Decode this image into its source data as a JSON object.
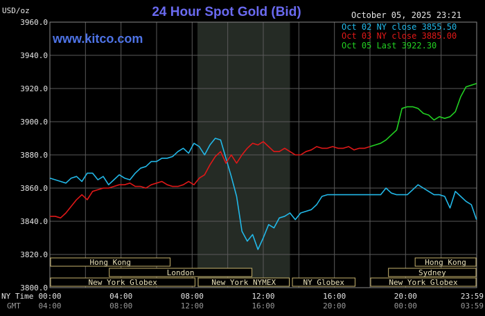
{
  "chart_data": {
    "type": "line",
    "title": "24 Hour Spot Gold (Bid)",
    "ylabel": "USD/oz",
    "watermark": "www.kitco.com",
    "timestamp": "October 05, 2025 23:21",
    "ylim": [
      3800,
      3960
    ],
    "yticks": [
      "3960.0",
      "3940.0",
      "3920.0",
      "3900.0",
      "3880.0",
      "3860.0",
      "3840.0",
      "3820.0",
      "3800.0"
    ],
    "ytick_values": [
      3960,
      3940,
      3920,
      3900,
      3880,
      3860,
      3840,
      3820,
      3800
    ],
    "xlim": [
      0,
      24
    ],
    "x_ny_label": "NY Time",
    "x_gmt_label": "GMT",
    "x_ny_ticks": [
      "00:00",
      "04:00",
      "08:00",
      "12:00",
      "16:00",
      "20:00",
      "23:59"
    ],
    "x_gmt_ticks": [
      "04:00",
      "08:00",
      "12:00",
      "16:00",
      "20:00",
      "00:00",
      "03:59"
    ],
    "x_tick_hours": [
      0,
      4,
      8,
      12,
      16,
      20,
      24
    ],
    "shaded_region": [
      8.3,
      13.5
    ],
    "grid": true,
    "legend_position": "top-right",
    "series": [
      {
        "name": "Oct 02 NY close 3855.50",
        "color": "#22b8e8",
        "x": [
          0,
          0.3,
          0.6,
          0.9,
          1.2,
          1.5,
          1.8,
          2.1,
          2.4,
          2.7,
          3.0,
          3.3,
          3.6,
          3.9,
          4.2,
          4.5,
          4.8,
          5.1,
          5.4,
          5.7,
          6.0,
          6.3,
          6.6,
          6.9,
          7.2,
          7.5,
          7.8,
          8.1,
          8.4,
          8.7,
          9.0,
          9.3,
          9.6,
          9.9,
          10.2,
          10.5,
          10.8,
          11.1,
          11.4,
          11.7,
          12.0,
          12.3,
          12.6,
          12.9,
          13.2,
          13.5,
          13.8,
          14.1,
          14.4,
          14.7,
          15.0,
          15.3,
          15.6,
          15.9,
          16.2,
          16.5,
          16.8,
          17.1,
          17.4,
          17.7,
          18.0,
          18.3,
          18.6,
          18.9,
          19.2,
          19.5,
          19.8,
          20.1,
          20.4,
          20.7,
          21.0,
          21.3,
          21.6,
          21.9,
          22.2,
          22.5,
          22.8,
          23.1,
          23.4,
          23.7,
          23.99
        ],
        "values": [
          3866,
          3865,
          3864,
          3863,
          3866,
          3867,
          3864,
          3869,
          3869,
          3865,
          3867,
          3862,
          3865,
          3868,
          3866,
          3865,
          3869,
          3872,
          3873,
          3876,
          3876,
          3878,
          3878,
          3879,
          3882,
          3884,
          3881,
          3887,
          3885,
          3880,
          3886,
          3890,
          3889,
          3878,
          3867,
          3855,
          3834,
          3828,
          3832,
          3823,
          3830,
          3838,
          3836,
          3842,
          3843,
          3845,
          3841,
          3845,
          3846,
          3847,
          3850,
          3855,
          3856,
          3856,
          3856,
          3856,
          3856,
          3856,
          3856,
          3856,
          3856,
          3856,
          3856,
          3860,
          3857,
          3856,
          3856,
          3856,
          3859,
          3862,
          3860,
          3858,
          3856,
          3856,
          3855,
          3848,
          3858,
          3855,
          3852,
          3850,
          3841
        ]
      },
      {
        "name": "Oct 03 NY close 3885.00",
        "color": "#e01818",
        "x": [
          0,
          0.3,
          0.6,
          0.9,
          1.2,
          1.5,
          1.8,
          2.1,
          2.4,
          2.7,
          3.0,
          3.3,
          3.6,
          3.9,
          4.2,
          4.5,
          4.8,
          5.1,
          5.4,
          5.7,
          6.0,
          6.3,
          6.6,
          6.9,
          7.2,
          7.5,
          7.8,
          8.1,
          8.4,
          8.7,
          9.0,
          9.3,
          9.6,
          9.9,
          10.2,
          10.5,
          10.8,
          11.1,
          11.4,
          11.7,
          12.0,
          12.3,
          12.6,
          12.9,
          13.2,
          13.5,
          13.8,
          14.1,
          14.4,
          14.7,
          15.0,
          15.3,
          15.6,
          15.9,
          16.2,
          16.5,
          16.8,
          17.1,
          17.4,
          17.7,
          18.0
        ],
        "values": [
          3843,
          3843,
          3842,
          3845,
          3849,
          3853,
          3856,
          3853,
          3858,
          3859,
          3860,
          3860,
          3861,
          3862,
          3862,
          3863,
          3861,
          3861,
          3860,
          3862,
          3863,
          3864,
          3862,
          3861,
          3861,
          3862,
          3864,
          3862,
          3866,
          3868,
          3874,
          3879,
          3882,
          3875,
          3880,
          3875,
          3880,
          3884,
          3887,
          3886,
          3888,
          3885,
          3882,
          3882,
          3884,
          3882,
          3880,
          3880,
          3882,
          3883,
          3885,
          3884,
          3884,
          3885,
          3884,
          3884,
          3885,
          3883,
          3884,
          3884,
          3885
        ]
      },
      {
        "name": "Oct 05 Last 3922.30",
        "color": "#22d022",
        "x": [
          18.0,
          18.3,
          18.6,
          18.9,
          19.2,
          19.5,
          19.8,
          20.1,
          20.4,
          20.7,
          21.0,
          21.3,
          21.6,
          21.9,
          22.2,
          22.5,
          22.8,
          23.1,
          23.4,
          23.7,
          23.99
        ],
        "values": [
          3885,
          3886,
          3887,
          3889,
          3892,
          3895,
          3908,
          3909,
          3909,
          3908,
          3905,
          3904,
          3901,
          3903,
          3902,
          3903,
          3906,
          3915,
          3921,
          3922,
          3923
        ]
      }
    ]
  },
  "sessions": [
    {
      "label": "Hong Kong",
      "start": 0,
      "end": 6.8,
      "row": 0
    },
    {
      "label": "London",
      "start": 3.3,
      "end": 11.4,
      "row": 1
    },
    {
      "label": "New York Globex",
      "start": 0,
      "end": 8.2,
      "row": 2
    },
    {
      "label": "New York NYMEX",
      "start": 8.3,
      "end": 13.5,
      "row": 2
    },
    {
      "label": "NY Globex",
      "start": 13.6,
      "end": 17.2,
      "row": 2
    },
    {
      "label": "Hong Kong",
      "start": 20.5,
      "end": 24,
      "row": 0
    },
    {
      "label": "Sydney",
      "start": 19.0,
      "end": 24,
      "row": 1
    },
    {
      "label": "New York Globex",
      "start": 18.0,
      "end": 24,
      "row": 2
    }
  ]
}
